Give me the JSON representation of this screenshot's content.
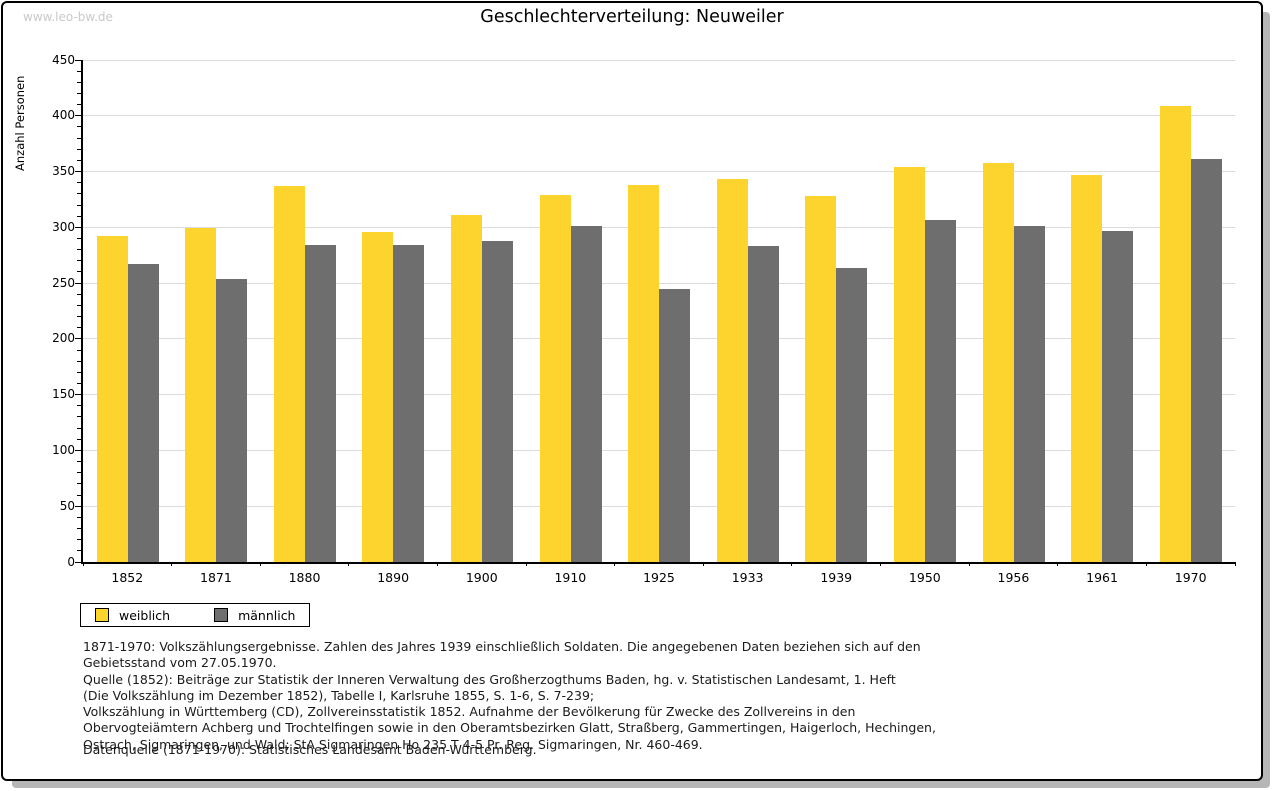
{
  "watermark": "www.leo-bw.de",
  "title": "Geschlechterverteilung: Neuweiler",
  "chart_data": {
    "type": "bar",
    "title": "Geschlechterverteilung: Neuweiler",
    "xlabel": "",
    "ylabel": "Anzahl Personen",
    "ylim": [
      0,
      450
    ],
    "y_major_step": 50,
    "y_minor_step": 10,
    "grid": true,
    "legend_position": "bottom-left",
    "categories": [
      "1852",
      "1871",
      "1880",
      "1890",
      "1900",
      "1910",
      "1925",
      "1933",
      "1939",
      "1950",
      "1956",
      "1961",
      "1970"
    ],
    "series": [
      {
        "name": "weiblich",
        "color": "#fcd42d",
        "values": [
          292,
          299,
          337,
          296,
          311,
          329,
          338,
          343,
          328,
          354,
          358,
          347,
          409
        ]
      },
      {
        "name": "männlich",
        "color": "#6e6e6e",
        "values": [
          267,
          254,
          284,
          284,
          288,
          301,
          245,
          283,
          264,
          307,
          301,
          297,
          361
        ]
      }
    ]
  },
  "legend": {
    "items": [
      {
        "label": "weiblich",
        "color": "#fcd42d"
      },
      {
        "label": "männlich",
        "color": "#6e6e6e"
      }
    ]
  },
  "footer": {
    "lines": [
      "1871-1970: Volkszählungsergebnisse. Zahlen des Jahres 1939 einschließlich Soldaten. Die angegebenen Daten beziehen sich auf den",
      "Gebietsstand vom 27.05.1970.",
      "Quelle (1852): Beiträge zur Statistik der Inneren Verwaltung des Großherzogthums Baden, hg. v. Statistischen Landesamt, 1. Heft",
      "(Die Volkszählung im Dezember 1852), Tabelle I, Karlsruhe 1855, S. 1-6, S. 7-239;",
      "Volkszählung in Württemberg (CD), Zollvereinsstatistik 1852. Aufnahme der Bevölkerung für Zwecke des Zollvereins in den",
      "Obervogteiämtern Achberg und Trochtelfingen sowie in den Oberamtsbezirken Glatt, Straßberg, Gammertingen, Haigerloch, Hechingen,",
      "Ostrach, Sigmaringen, und Wald; StA Sigmaringen Ho 235 T 4-5 Pr. Reg. Sigmaringen, Nr. 460-469."
    ],
    "datasource": "Datenquelle (1871-1970): Statistisches Landesamt Baden-Württemberg."
  },
  "colors": {
    "bar_female": "#fcd42d",
    "bar_male": "#6e6e6e",
    "gridline": "#dcdcdc",
    "axis": "#000000",
    "watermark": "#c9c9c9",
    "shadow": "#b6b6b6"
  }
}
